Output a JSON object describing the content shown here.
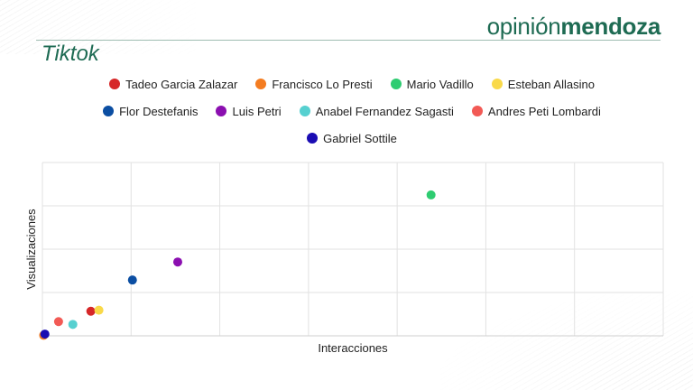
{
  "brand": {
    "part1": "opinión",
    "part2": "mendoza"
  },
  "chart_data": {
    "type": "scatter",
    "title": "Tiktok",
    "xlabel": "Interacciones",
    "ylabel": "Visualizaciones",
    "xlim": [
      0,
      100
    ],
    "ylim": [
      0,
      100
    ],
    "grid": true,
    "legend_position": "top",
    "series": [
      {
        "name": "Tadeo Garcia Zalazar",
        "color": "#d62728",
        "x": 7.8,
        "y": 14.2
      },
      {
        "name": "Francisco Lo Presti",
        "color": "#f47c20",
        "x": 0.2,
        "y": 0.3
      },
      {
        "name": "Mario Vadillo",
        "color": "#2ecc71",
        "x": 62.6,
        "y": 81.3
      },
      {
        "name": "Esteban Allasino",
        "color": "#f9d949",
        "x": 9.1,
        "y": 14.8
      },
      {
        "name": "Flor Destefanis",
        "color": "#0b4ea2",
        "x": 14.5,
        "y": 32.2
      },
      {
        "name": "Luis Petri",
        "color": "#8b0fb0",
        "x": 21.8,
        "y": 42.6
      },
      {
        "name": "Anabel Fernandez Sagasti",
        "color": "#56d0d0",
        "x": 4.9,
        "y": 6.6
      },
      {
        "name": "Andres Peti Lombardi",
        "color": "#f25a55",
        "x": 2.6,
        "y": 8.2
      },
      {
        "name": "Gabriel Sottile",
        "color": "#1a0cb3",
        "x": 0.4,
        "y": 1.0
      }
    ]
  }
}
